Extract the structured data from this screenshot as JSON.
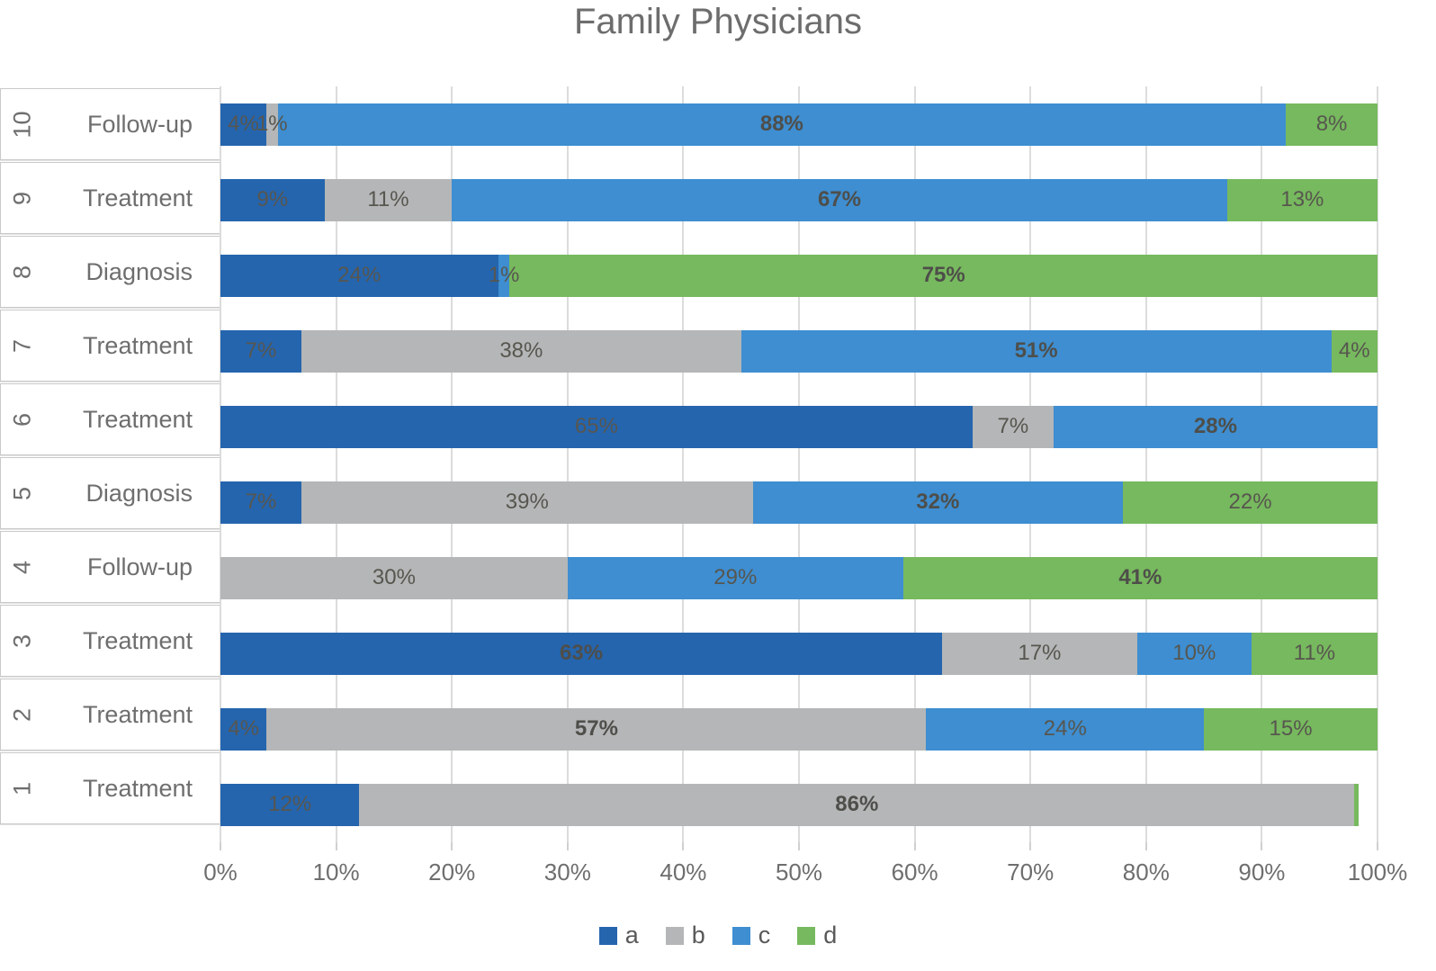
{
  "title": "Family Physicians",
  "colors": {
    "a": "#2565AE",
    "b": "#B4B6B7",
    "c": "#3E8ED1",
    "d": "#77B95E"
  },
  "legend": [
    {
      "series": "a",
      "label": "a"
    },
    {
      "series": "b",
      "label": "b"
    },
    {
      "series": "c",
      "label": "c"
    },
    {
      "series": "d",
      "label": "d"
    }
  ],
  "x_axis": {
    "ticks": [
      "0%",
      "10%",
      "20%",
      "30%",
      "40%",
      "50%",
      "60%",
      "70%",
      "80%",
      "90%",
      "100%"
    ],
    "range": [
      0,
      100
    ]
  },
  "chart_data": {
    "type": "bar",
    "stacked": true,
    "orientation": "horizontal",
    "title": "Family Physicians",
    "xlabel": "",
    "ylabel": "",
    "xlim": [
      0,
      100
    ],
    "grid": true,
    "legend_position": "bottom",
    "series_names": [
      "a",
      "b",
      "c",
      "d"
    ],
    "rows": [
      {
        "number": "10",
        "category": "Follow-up",
        "segments": [
          {
            "series": "a",
            "value": 4,
            "label": "4%",
            "bold": false
          },
          {
            "series": "b",
            "value": 1,
            "label": "1%",
            "bold": false
          },
          {
            "series": "c",
            "value": 88,
            "label": "88%",
            "bold": true
          },
          {
            "series": "d",
            "value": 8,
            "label": "8%",
            "bold": false
          }
        ]
      },
      {
        "number": "9",
        "category": "Treatment",
        "segments": [
          {
            "series": "a",
            "value": 9,
            "label": "9%",
            "bold": false
          },
          {
            "series": "b",
            "value": 11,
            "label": "11%",
            "bold": false
          },
          {
            "series": "c",
            "value": 67,
            "label": "67%",
            "bold": true
          },
          {
            "series": "d",
            "value": 13,
            "label": "13%",
            "bold": false
          }
        ]
      },
      {
        "number": "8",
        "category": "Diagnosis",
        "segments": [
          {
            "series": "a",
            "value": 24,
            "label": "24%",
            "bold": false
          },
          {
            "series": "c",
            "value": 1,
            "label": "1%",
            "bold": false
          },
          {
            "series": "d",
            "value": 75,
            "label": "75%",
            "bold": true
          }
        ]
      },
      {
        "number": "7",
        "category": "Treatment",
        "segments": [
          {
            "series": "a",
            "value": 7,
            "label": "7%",
            "bold": false
          },
          {
            "series": "b",
            "value": 38,
            "label": "38%",
            "bold": false
          },
          {
            "series": "c",
            "value": 51,
            "label": "51%",
            "bold": true
          },
          {
            "series": "d",
            "value": 4,
            "label": "4%",
            "bold": false
          }
        ]
      },
      {
        "number": "6",
        "category": "Treatment",
        "segments": [
          {
            "series": "a",
            "value": 65,
            "label": "65%",
            "bold": false
          },
          {
            "series": "b",
            "value": 7,
            "label": "7%",
            "bold": false
          },
          {
            "series": "c",
            "value": 28,
            "label": "28%",
            "bold": true
          }
        ]
      },
      {
        "number": "5",
        "category": "Diagnosis",
        "segments": [
          {
            "series": "a",
            "value": 7,
            "label": "7%",
            "bold": false
          },
          {
            "series": "b",
            "value": 39,
            "label": "39%",
            "bold": false
          },
          {
            "series": "c",
            "value": 32,
            "label": "32%",
            "bold": true
          },
          {
            "series": "d",
            "value": 22,
            "label": "22%",
            "bold": false
          }
        ]
      },
      {
        "number": "4",
        "category": "Follow-up",
        "segments": [
          {
            "series": "b",
            "value": 30,
            "label": "30%",
            "bold": false
          },
          {
            "series": "c",
            "value": 29,
            "label": "29%",
            "bold": false
          },
          {
            "series": "d",
            "value": 41,
            "label": "41%",
            "bold": true
          }
        ]
      },
      {
        "number": "3",
        "category": "Treatment",
        "segments": [
          {
            "series": "a",
            "value": 63,
            "label": "63%",
            "bold": true
          },
          {
            "series": "b",
            "value": 17,
            "label": "17%",
            "bold": false
          },
          {
            "series": "c",
            "value": 10,
            "label": "10%",
            "bold": false
          },
          {
            "series": "d",
            "value": 11,
            "label": "11%",
            "bold": false
          }
        ]
      },
      {
        "number": "2",
        "category": "Treatment",
        "segments": [
          {
            "series": "a",
            "value": 4,
            "label": "4%",
            "bold": false
          },
          {
            "series": "b",
            "value": 57,
            "label": "57%",
            "bold": true
          },
          {
            "series": "c",
            "value": 24,
            "label": "24%",
            "bold": false
          },
          {
            "series": "d",
            "value": 15,
            "label": "15%",
            "bold": false
          }
        ]
      },
      {
        "number": "1",
        "category": "Treatment",
        "segments": [
          {
            "series": "a",
            "value": 12,
            "label": "12%",
            "bold": false
          },
          {
            "series": "b",
            "value": 86,
            "label": "86%",
            "bold": true
          },
          {
            "series": "d",
            "value": 0.4,
            "label": "",
            "bold": false
          }
        ]
      }
    ]
  }
}
